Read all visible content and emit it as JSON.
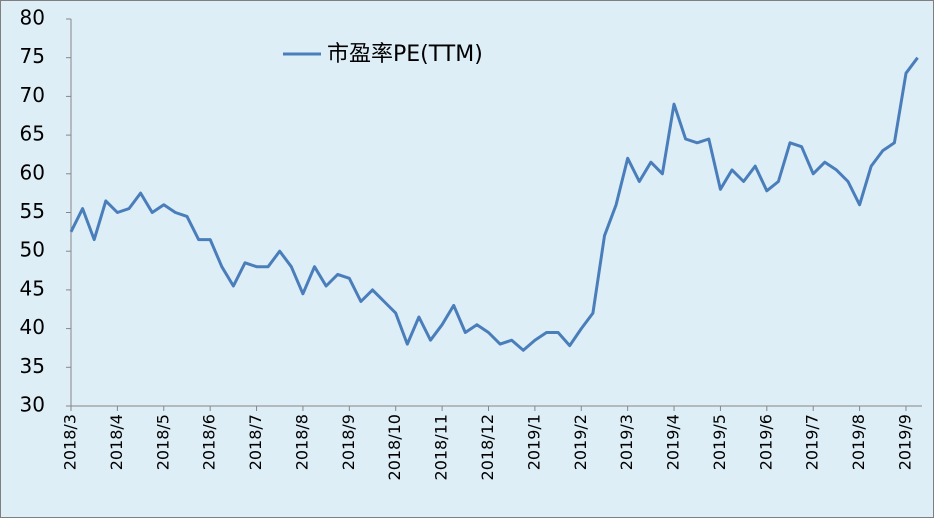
{
  "chart_data": {
    "type": "line",
    "categories": [
      "2018/3",
      null,
      null,
      null,
      "2018/4",
      null,
      null,
      null,
      "2018/5",
      null,
      null,
      null,
      "2018/6",
      null,
      null,
      null,
      "2018/7",
      null,
      null,
      null,
      "2018/8",
      null,
      null,
      null,
      "2018/9",
      null,
      null,
      null,
      "2018/10",
      null,
      null,
      null,
      "2018/11",
      null,
      null,
      null,
      "2018/12",
      null,
      null,
      null,
      "2019/1",
      null,
      null,
      null,
      "2019/2",
      null,
      null,
      null,
      "2019/3",
      null,
      null,
      null,
      "2019/4",
      null,
      null,
      null,
      "2019/5",
      null,
      null,
      null,
      "2019/6",
      null,
      null,
      null,
      "2019/7",
      null,
      null,
      null,
      "2019/8",
      null,
      null,
      null,
      "2019/9",
      null
    ],
    "series": [
      {
        "name": "市盈率PE(TTM)",
        "color": "#4a7ebb",
        "values": [
          52.5,
          55.5,
          51.5,
          56.5,
          55,
          55.5,
          57.5,
          55,
          56,
          55,
          54.5,
          51.5,
          51.5,
          48,
          45.5,
          48.5,
          48,
          48,
          50,
          48,
          44.5,
          48,
          45.5,
          47,
          46.5,
          43.5,
          45,
          43.5,
          42,
          38,
          41.5,
          38.5,
          40.5,
          43,
          39.5,
          40.5,
          39.5,
          38,
          38.5,
          37.2,
          38.5,
          39.5,
          39.5,
          37.8,
          40,
          42,
          52,
          56,
          62,
          59,
          61.5,
          60,
          69,
          64.5,
          64,
          64.5,
          58,
          60.5,
          59,
          61,
          57.8,
          59,
          64,
          63.5,
          60,
          61.5,
          60.5,
          59,
          56,
          61,
          63,
          64,
          73,
          75
        ]
      }
    ],
    "ylim": [
      30,
      80
    ],
    "yticks": [
      30,
      35,
      40,
      45,
      50,
      55,
      60,
      65,
      70,
      75,
      80
    ],
    "grid": false,
    "legend": "top"
  }
}
